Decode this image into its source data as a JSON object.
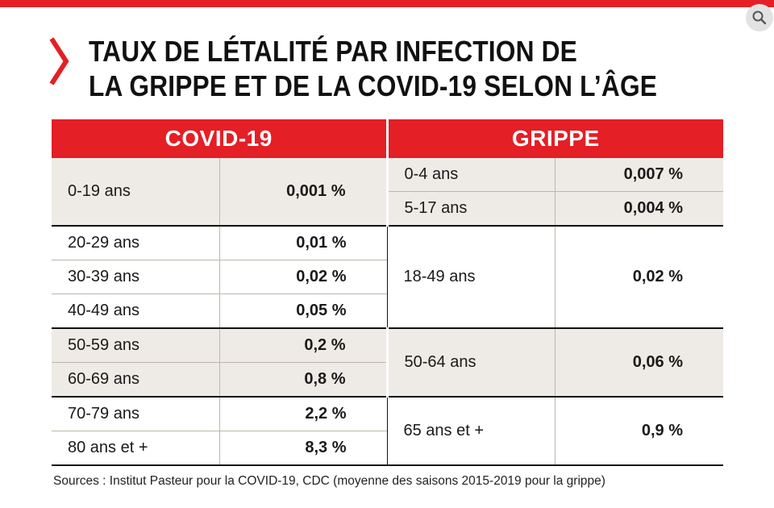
{
  "title": {
    "line1": "TAUX DE LÉTALITÉ PAR INFECTION DE",
    "line2": "LA GRIPPE ET DE LA COVID-19 SELON L’ÂGE"
  },
  "headers": {
    "covid": "COVID-19",
    "grippe": "GRIPPE"
  },
  "covid_rows": [
    {
      "age": "0-19 ans",
      "rate": "0,001 %"
    },
    {
      "age": "20-29 ans",
      "rate": "0,01 %"
    },
    {
      "age": "30-39 ans",
      "rate": "0,02 %"
    },
    {
      "age": "40-49 ans",
      "rate": "0,05 %"
    },
    {
      "age": "50-59 ans",
      "rate": "0,2 %"
    },
    {
      "age": "60-69 ans",
      "rate": "0,8 %"
    },
    {
      "age": "70-79 ans",
      "rate": "2,2 %"
    },
    {
      "age": "80 ans et +",
      "rate": "8,3 %"
    }
  ],
  "grippe_rows": [
    {
      "age": "0-4 ans",
      "rate": "0,007 %"
    },
    {
      "age": "5-17 ans",
      "rate": "0,004 %"
    },
    {
      "age": "18-49 ans",
      "rate": "0,02 %"
    },
    {
      "age": "50-64 ans",
      "rate": "0,06 %"
    },
    {
      "age": "65 ans et +",
      "rate": "0,9 %"
    }
  ],
  "sources": "Sources : Institut Pasteur pour la COVID-19, CDC (moyenne des saisons 2015-2019 pour la grippe)",
  "colors": {
    "accent": "#e41f26",
    "row_beige": "#eeebe6"
  },
  "icons": {
    "title_marker": "red-chevron-icon",
    "corner": "zoom-icon"
  }
}
